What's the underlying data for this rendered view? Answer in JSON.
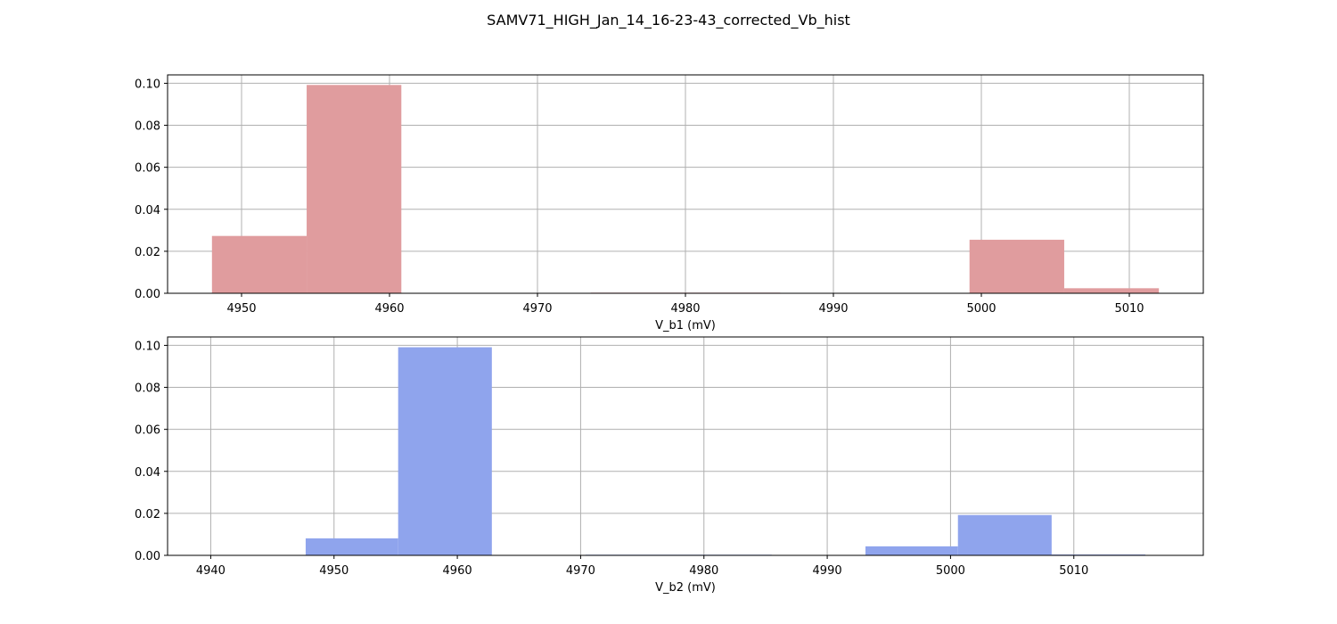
{
  "figure": {
    "title": "SAMV71_HIGH_Jan_14_16-23-43_corrected_Vb_hist"
  },
  "chart_data": [
    {
      "type": "bar",
      "subtype": "histogram",
      "xlabel": "V_b1 (mV)",
      "ylabel": "",
      "xlim": [
        4945,
        5015
      ],
      "ylim": [
        0,
        0.104
      ],
      "xticks": [
        4950,
        4960,
        4970,
        4980,
        4990,
        5000,
        5010
      ],
      "yticks": [
        0.0,
        0.02,
        0.04,
        0.06,
        0.08,
        0.1
      ],
      "grid": true,
      "color": "#e09c9e",
      "bins": [
        {
          "start": 4948.0,
          "end": 4954.4,
          "value": 0.0273
        },
        {
          "start": 4954.4,
          "end": 4960.8,
          "value": 0.0992
        },
        {
          "start": 4960.8,
          "end": 4967.2,
          "value": 0.0
        },
        {
          "start": 4967.2,
          "end": 4973.6,
          "value": 0.0
        },
        {
          "start": 4973.6,
          "end": 4980.0,
          "value": 0.0003
        },
        {
          "start": 4980.0,
          "end": 4986.4,
          "value": 0.0003
        },
        {
          "start": 4986.4,
          "end": 4992.8,
          "value": 0.0
        },
        {
          "start": 4992.8,
          "end": 4999.2,
          "value": 0.0
        },
        {
          "start": 4999.2,
          "end": 5005.6,
          "value": 0.0255
        },
        {
          "start": 5005.6,
          "end": 5012.0,
          "value": 0.0024
        }
      ]
    },
    {
      "type": "bar",
      "subtype": "histogram",
      "xlabel": "V_b2 (mV)",
      "ylabel": "",
      "xlim": [
        4936.5,
        5020.5
      ],
      "ylim": [
        0,
        0.104
      ],
      "xticks": [
        4940,
        4950,
        4960,
        4970,
        4980,
        4990,
        5000,
        5010
      ],
      "yticks": [
        0.0,
        0.02,
        0.04,
        0.06,
        0.08,
        0.1
      ],
      "grid": true,
      "color": "#8fa4ed",
      "bins": [
        {
          "start": 4940.1,
          "end": 4947.7,
          "value": 0.0
        },
        {
          "start": 4947.7,
          "end": 4955.2,
          "value": 0.0081
        },
        {
          "start": 4955.2,
          "end": 4962.8,
          "value": 0.0991
        },
        {
          "start": 4962.8,
          "end": 4970.4,
          "value": 0.0
        },
        {
          "start": 4970.4,
          "end": 4977.9,
          "value": 0.0003
        },
        {
          "start": 4977.9,
          "end": 4985.5,
          "value": 0.0003
        },
        {
          "start": 4985.5,
          "end": 4993.1,
          "value": 0.0
        },
        {
          "start": 4993.1,
          "end": 5000.6,
          "value": 0.0043
        },
        {
          "start": 5000.6,
          "end": 5008.2,
          "value": 0.0192
        },
        {
          "start": 5008.2,
          "end": 5015.8,
          "value": 0.0004
        }
      ]
    }
  ]
}
